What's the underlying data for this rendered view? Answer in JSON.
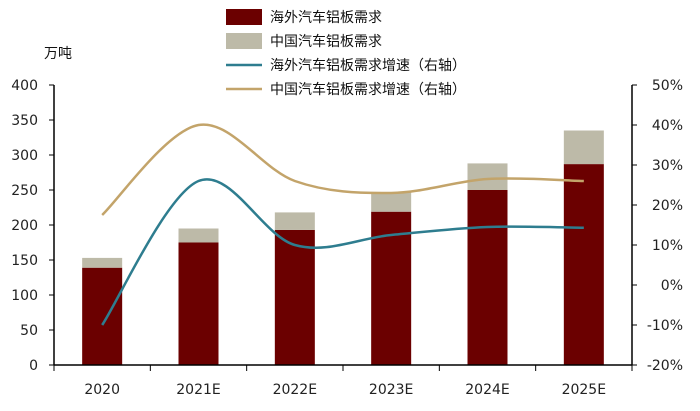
{
  "chart_data": {
    "type": "bar",
    "y_unit": "万吨",
    "categories": [
      "2020",
      "2021E",
      "2022E",
      "2023E",
      "2024E",
      "2025E"
    ],
    "series": [
      {
        "name": "海外汽车铝板需求",
        "kind": "bar",
        "color": "#6b0000",
        "values": [
          139,
          175,
          193,
          219,
          250,
          287
        ]
      },
      {
        "name": "中国汽车铝板需求",
        "kind": "bar",
        "color": "#bdbaa8",
        "values": [
          14,
          20,
          25,
          28,
          38,
          48
        ]
      },
      {
        "name": "海外汽车铝板需求增速（右轴）",
        "kind": "line",
        "axis": "right",
        "color": "#2e7d8f",
        "values": [
          -10,
          26,
          10,
          12.5,
          14.5,
          14.3
        ]
      },
      {
        "name": "中国汽车铝板需求增速（右轴）",
        "kind": "line",
        "axis": "right",
        "color": "#c3a46a",
        "values": [
          17.5,
          40,
          26,
          23,
          26.5,
          26
        ]
      }
    ],
    "y_left": {
      "min": 0,
      "max": 400,
      "ticks": [
        "0",
        "50",
        "100",
        "150",
        "200",
        "250",
        "300",
        "350",
        "400"
      ]
    },
    "y_right": {
      "min": -20,
      "max": 50,
      "ticks": [
        "-20%",
        "-10%",
        "0%",
        "10%",
        "20%",
        "30%",
        "40%",
        "50%"
      ]
    },
    "stacked": true,
    "grid": false,
    "legend_position": "top-center"
  }
}
